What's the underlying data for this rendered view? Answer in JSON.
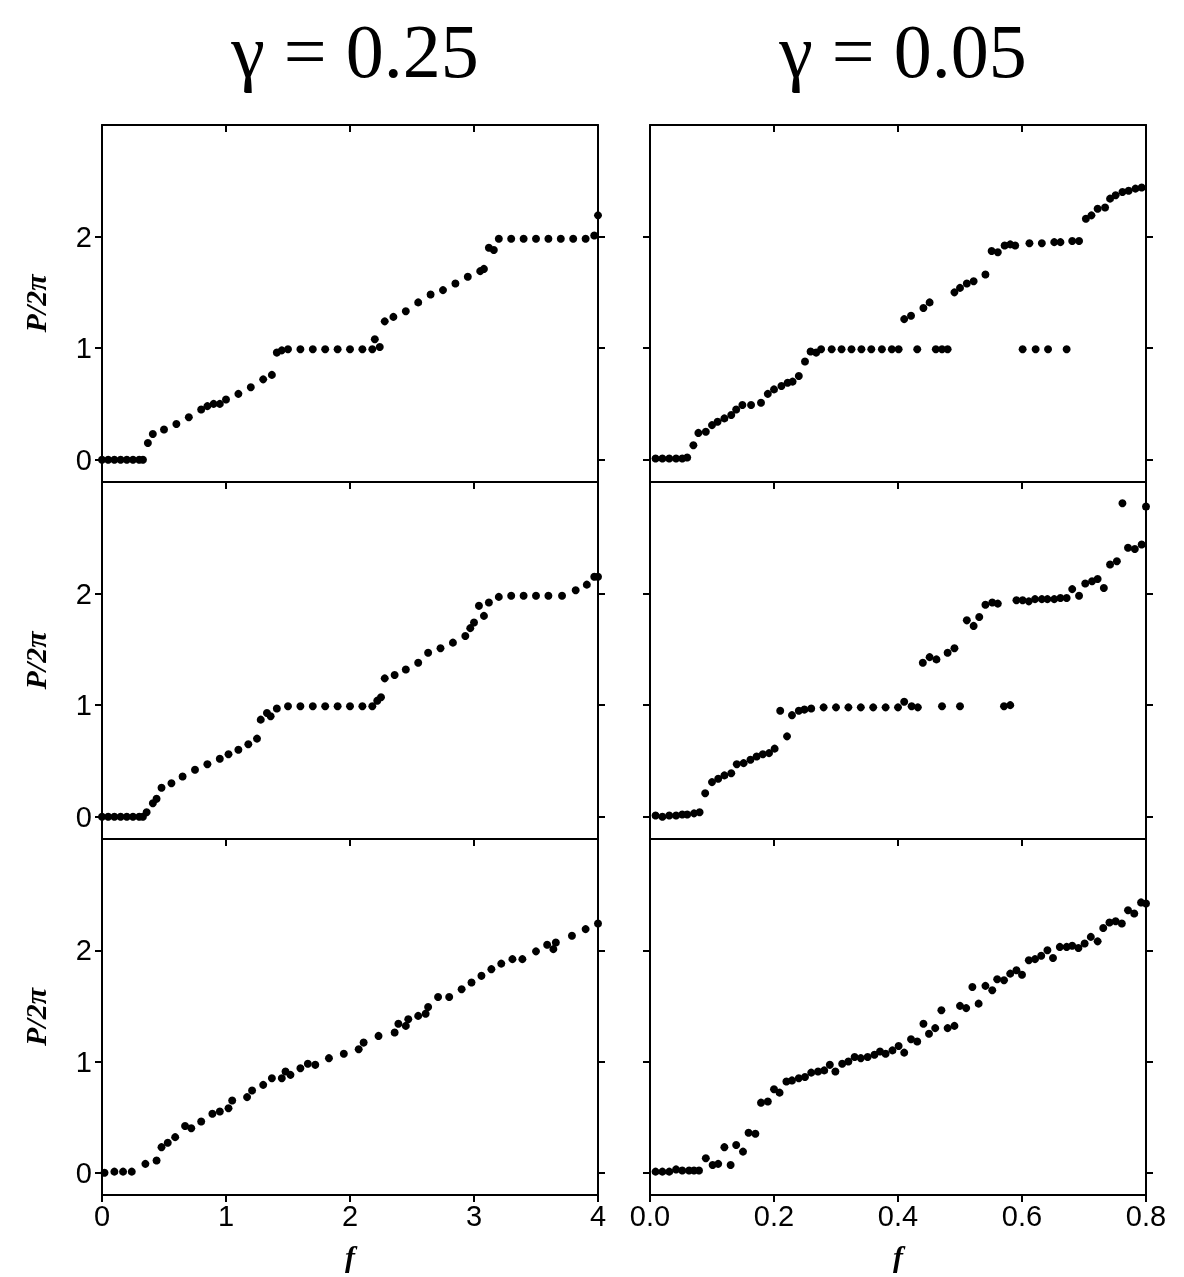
{
  "chart_data": [
    {
      "type": "scatter",
      "title": "γ = 0.25",
      "ylabel": "P/2π",
      "tick_labels": "y",
      "marker": "circle",
      "color": "#000000",
      "xlim": [
        0,
        4
      ],
      "xticks": [
        0,
        1,
        2,
        3,
        4
      ],
      "ylim": [
        -0.2,
        3.0
      ],
      "yticks": [
        0,
        1,
        2
      ],
      "x": [
        0,
        0.05,
        0.1,
        0.15,
        0.2,
        0.25,
        0.3,
        0.33,
        0.37,
        0.41,
        0.5,
        0.6,
        0.7,
        0.8,
        0.85,
        0.9,
        0.95,
        1.0,
        1.1,
        1.2,
        1.3,
        1.37,
        1.41,
        1.45,
        1.5,
        1.6,
        1.7,
        1.8,
        1.9,
        2.0,
        2.1,
        2.18,
        2.2,
        2.24,
        2.28,
        2.35,
        2.45,
        2.55,
        2.65,
        2.75,
        2.85,
        2.95,
        3.05,
        3.08,
        3.12,
        3.16,
        3.2,
        3.3,
        3.4,
        3.5,
        3.6,
        3.7,
        3.8,
        3.9,
        3.97,
        4.0
      ],
      "values": [
        0,
        0,
        0,
        0,
        0,
        0,
        0,
        0,
        0.15,
        0.23,
        0.27,
        0.32,
        0.38,
        0.45,
        0.48,
        0.5,
        0.5,
        0.54,
        0.59,
        0.65,
        0.72,
        0.76,
        0.96,
        0.98,
        0.99,
        0.99,
        0.99,
        0.99,
        0.99,
        0.99,
        0.99,
        0.99,
        1.08,
        1.01,
        1.24,
        1.28,
        1.33,
        1.41,
        1.48,
        1.52,
        1.58,
        1.64,
        1.69,
        1.71,
        1.9,
        1.88,
        1.98,
        1.98,
        1.98,
        1.98,
        1.98,
        1.98,
        1.98,
        1.98,
        2.01,
        2.19
      ]
    },
    {
      "type": "scatter",
      "title": "γ = 0.05",
      "tick_labels": false,
      "marker": "circle",
      "color": "#000000",
      "xlim": [
        0,
        0.8
      ],
      "xticks": [
        0,
        0.2,
        0.4,
        0.6,
        0.8
      ],
      "ylim": [
        -0.2,
        3.0
      ],
      "yticks": [
        0,
        1,
        2
      ],
      "x": [
        0.009,
        0.02,
        0.031,
        0.042,
        0.052,
        0.06,
        0.07,
        0.078,
        0.09,
        0.1,
        0.109,
        0.12,
        0.131,
        0.139,
        0.149,
        0.163,
        0.179,
        0.19,
        0.2,
        0.212,
        0.222,
        0.23,
        0.24,
        0.25,
        0.259,
        0.268,
        0.276,
        0.293,
        0.309,
        0.325,
        0.341,
        0.357,
        0.374,
        0.39,
        0.401,
        0.41,
        0.421,
        0.431,
        0.441,
        0.451,
        0.461,
        0.471,
        0.48,
        0.491,
        0.5,
        0.511,
        0.522,
        0.541,
        0.551,
        0.561,
        0.572,
        0.581,
        0.589,
        0.601,
        0.612,
        0.622,
        0.632,
        0.642,
        0.652,
        0.662,
        0.672,
        0.681,
        0.692,
        0.703,
        0.712,
        0.722,
        0.734,
        0.742,
        0.751,
        0.762,
        0.772,
        0.783,
        0.793
      ],
      "values": [
        0.01,
        0.01,
        0.01,
        0.01,
        0.01,
        0.02,
        0.13,
        0.24,
        0.25,
        0.31,
        0.34,
        0.37,
        0.4,
        0.45,
        0.49,
        0.49,
        0.51,
        0.59,
        0.63,
        0.66,
        0.69,
        0.7,
        0.75,
        0.88,
        0.97,
        0.96,
        0.99,
        0.99,
        0.99,
        0.99,
        0.99,
        0.99,
        0.99,
        0.99,
        0.99,
        1.26,
        1.29,
        0.99,
        1.36,
        1.41,
        0.99,
        0.99,
        0.99,
        1.5,
        1.54,
        1.58,
        1.6,
        1.66,
        1.87,
        1.86,
        1.92,
        1.93,
        1.92,
        0.99,
        1.94,
        0.99,
        1.94,
        0.99,
        1.95,
        1.95,
        0.99,
        1.96,
        1.96,
        2.16,
        2.19,
        2.25,
        2.26,
        2.34,
        2.37,
        2.4,
        2.41,
        2.43,
        2.44
      ]
    },
    {
      "type": "scatter",
      "ylabel": "P/2π",
      "tick_labels": "y",
      "marker": "circle",
      "color": "#000000",
      "xlim": [
        0,
        4
      ],
      "xticks": [
        0,
        1,
        2,
        3,
        4
      ],
      "ylim": [
        -0.2,
        3.0
      ],
      "yticks": [
        0,
        1,
        2
      ],
      "x": [
        0,
        0.05,
        0.1,
        0.15,
        0.2,
        0.25,
        0.3,
        0.33,
        0.36,
        0.41,
        0.44,
        0.48,
        0.56,
        0.65,
        0.75,
        0.85,
        0.95,
        1.02,
        1.1,
        1.18,
        1.25,
        1.28,
        1.33,
        1.36,
        1.41,
        1.5,
        1.6,
        1.7,
        1.8,
        1.9,
        2.0,
        2.1,
        2.18,
        2.22,
        2.25,
        2.28,
        2.36,
        2.45,
        2.55,
        2.63,
        2.73,
        2.83,
        2.93,
        2.97,
        3.0,
        3.04,
        3.08,
        3.12,
        3.2,
        3.3,
        3.4,
        3.5,
        3.6,
        3.71,
        3.82,
        3.91,
        3.97,
        4.0
      ],
      "values": [
        0,
        0,
        0,
        0,
        0,
        0,
        0,
        0,
        0.04,
        0.12,
        0.16,
        0.26,
        0.3,
        0.36,
        0.42,
        0.47,
        0.52,
        0.56,
        0.6,
        0.65,
        0.7,
        0.87,
        0.93,
        0.9,
        0.97,
        0.99,
        0.99,
        0.99,
        0.99,
        0.99,
        0.99,
        0.99,
        0.99,
        1.04,
        1.07,
        1.24,
        1.27,
        1.32,
        1.38,
        1.47,
        1.51,
        1.56,
        1.62,
        1.69,
        1.74,
        1.89,
        1.8,
        1.92,
        1.97,
        1.98,
        1.98,
        1.98,
        1.98,
        1.98,
        2.03,
        2.08,
        2.15,
        2.15
      ]
    },
    {
      "type": "scatter",
      "tick_labels": false,
      "marker": "circle",
      "color": "#000000",
      "xlim": [
        0,
        0.8
      ],
      "xticks": [
        0,
        0.2,
        0.4,
        0.6,
        0.8
      ],
      "ylim": [
        -0.2,
        3.0
      ],
      "yticks": [
        0,
        1,
        2
      ],
      "x": [
        0.009,
        0.02,
        0.031,
        0.042,
        0.052,
        0.06,
        0.071,
        0.08,
        0.089,
        0.1,
        0.11,
        0.12,
        0.131,
        0.14,
        0.151,
        0.162,
        0.172,
        0.182,
        0.192,
        0.201,
        0.21,
        0.221,
        0.229,
        0.24,
        0.249,
        0.26,
        0.28,
        0.3,
        0.32,
        0.34,
        0.36,
        0.38,
        0.4,
        0.41,
        0.422,
        0.432,
        0.44,
        0.451,
        0.462,
        0.471,
        0.48,
        0.491,
        0.5,
        0.511,
        0.522,
        0.531,
        0.541,
        0.552,
        0.561,
        0.571,
        0.581,
        0.591,
        0.601,
        0.611,
        0.621,
        0.632,
        0.641,
        0.652,
        0.662,
        0.672,
        0.681,
        0.692,
        0.702,
        0.713,
        0.722,
        0.732,
        0.742,
        0.753,
        0.762,
        0.771,
        0.782,
        0.793,
        0.8
      ],
      "values": [
        0.01,
        0,
        0.01,
        0.01,
        0.02,
        0.02,
        0.03,
        0.04,
        0.21,
        0.31,
        0.34,
        0.37,
        0.39,
        0.47,
        0.48,
        0.51,
        0.54,
        0.56,
        0.57,
        0.61,
        0.95,
        0.72,
        0.91,
        0.95,
        0.96,
        0.97,
        0.98,
        0.98,
        0.98,
        0.98,
        0.98,
        0.98,
        0.98,
        1.03,
        0.99,
        0.98,
        1.38,
        1.43,
        1.41,
        0.99,
        1.47,
        1.51,
        0.99,
        1.76,
        1.71,
        1.79,
        1.9,
        1.92,
        1.91,
        0.99,
        1.0,
        1.94,
        1.94,
        1.93,
        1.95,
        1.95,
        1.95,
        1.95,
        1.96,
        1.96,
        2.04,
        1.98,
        2.09,
        2.11,
        2.13,
        2.05,
        2.26,
        2.29,
        2.81,
        2.41,
        2.4,
        2.44,
        2.78
      ]
    },
    {
      "type": "scatter",
      "ylabel": "P/2π",
      "xlabel": "f",
      "marker": "circle",
      "color": "#000000",
      "xlim": [
        0,
        4
      ],
      "xticks": [
        0,
        1,
        2,
        3,
        4
      ],
      "ylim": [
        -0.2,
        3.0
      ],
      "yticks": [
        0,
        1,
        2
      ],
      "x": [
        0.02,
        0.1,
        0.17,
        0.24,
        0.35,
        0.44,
        0.48,
        0.53,
        0.59,
        0.67,
        0.72,
        0.8,
        0.89,
        0.95,
        1.02,
        1.05,
        1.17,
        1.21,
        1.3,
        1.37,
        1.45,
        1.48,
        1.52,
        1.6,
        1.66,
        1.72,
        1.83,
        1.95,
        2.07,
        2.11,
        2.23,
        2.36,
        2.39,
        2.45,
        2.47,
        2.55,
        2.61,
        2.63,
        2.71,
        2.8,
        2.9,
        2.98,
        3.06,
        3.14,
        3.22,
        3.31,
        3.39,
        3.5,
        3.59,
        3.64,
        3.66,
        3.79,
        3.9,
        4.0
      ],
      "values": [
        0,
        0.01,
        0.01,
        0.01,
        0.08,
        0.11,
        0.23,
        0.27,
        0.32,
        0.42,
        0.4,
        0.46,
        0.53,
        0.55,
        0.58,
        0.65,
        0.68,
        0.74,
        0.79,
        0.85,
        0.85,
        0.91,
        0.88,
        0.94,
        0.98,
        0.97,
        1.03,
        1.07,
        1.11,
        1.17,
        1.23,
        1.26,
        1.34,
        1.32,
        1.38,
        1.41,
        1.43,
        1.49,
        1.58,
        1.58,
        1.65,
        1.71,
        1.77,
        1.83,
        1.88,
        1.92,
        1.92,
        1.99,
        2.05,
        2.01,
        2.07,
        2.13,
        2.19,
        2.24
      ]
    },
    {
      "type": "scatter",
      "xlabel": "f",
      "tick_labels": "x",
      "marker": "circle",
      "color": "#000000",
      "xlim": [
        0,
        0.8
      ],
      "xticks": [
        {
          "value": 0,
          "label": "0.0"
        },
        {
          "value": 0.2,
          "label": "0.2"
        },
        {
          "value": 0.4,
          "label": "0.4"
        },
        {
          "value": 0.6,
          "label": "0.6"
        },
        {
          "value": 0.8,
          "label": "0.8"
        }
      ],
      "ylim": [
        -0.2,
        3.0
      ],
      "yticks": [
        0,
        1,
        2
      ],
      "x": [
        0.009,
        0.02,
        0.031,
        0.042,
        0.052,
        0.063,
        0.071,
        0.079,
        0.09,
        0.101,
        0.11,
        0.12,
        0.13,
        0.139,
        0.15,
        0.159,
        0.17,
        0.179,
        0.19,
        0.2,
        0.209,
        0.22,
        0.229,
        0.24,
        0.25,
        0.26,
        0.271,
        0.281,
        0.29,
        0.299,
        0.31,
        0.32,
        0.33,
        0.34,
        0.351,
        0.362,
        0.371,
        0.38,
        0.391,
        0.401,
        0.41,
        0.421,
        0.431,
        0.441,
        0.45,
        0.46,
        0.47,
        0.48,
        0.491,
        0.5,
        0.51,
        0.52,
        0.53,
        0.541,
        0.552,
        0.56,
        0.571,
        0.581,
        0.591,
        0.6,
        0.611,
        0.621,
        0.631,
        0.641,
        0.65,
        0.661,
        0.672,
        0.681,
        0.691,
        0.701,
        0.711,
        0.722,
        0.731,
        0.741,
        0.751,
        0.761,
        0.771,
        0.781,
        0.792,
        0.8
      ],
      "values": [
        0.01,
        0.01,
        0.01,
        0.03,
        0.02,
        0.02,
        0.02,
        0.02,
        0.13,
        0.07,
        0.08,
        0.23,
        0.07,
        0.25,
        0.19,
        0.36,
        0.35,
        0.63,
        0.64,
        0.75,
        0.72,
        0.82,
        0.83,
        0.85,
        0.86,
        0.9,
        0.91,
        0.92,
        0.97,
        0.91,
        0.98,
        1.0,
        1.04,
        1.03,
        1.04,
        1.06,
        1.09,
        1.07,
        1.1,
        1.14,
        1.08,
        1.2,
        1.18,
        1.34,
        1.25,
        1.3,
        1.46,
        1.3,
        1.32,
        1.5,
        1.48,
        1.67,
        1.52,
        1.68,
        1.64,
        1.74,
        1.73,
        1.79,
        1.82,
        1.78,
        1.91,
        1.92,
        1.95,
        2.0,
        1.93,
        2.03,
        2.03,
        2.04,
        2.02,
        2.06,
        2.12,
        2.08,
        2.2,
        2.25,
        2.26,
        2.24,
        2.36,
        2.33,
        2.43,
        2.42
      ]
    }
  ]
}
